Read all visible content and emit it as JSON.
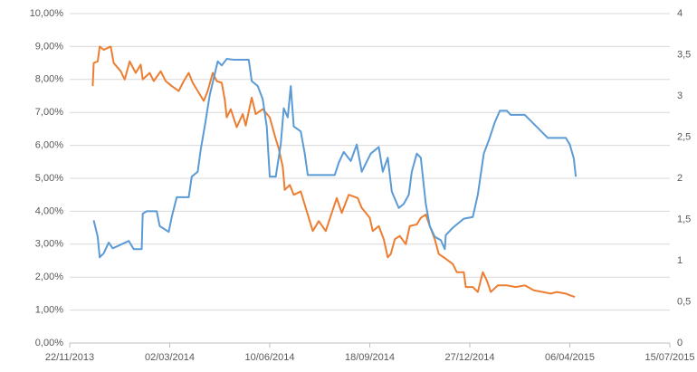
{
  "chart_data": {
    "type": "line",
    "xlim": [
      "2013-11-22",
      "2015-07-15"
    ],
    "xticks": [
      {
        "value": "2013-11-22",
        "label": "22/11/2013"
      },
      {
        "value": "2014-03-02",
        "label": "02/03/2014"
      },
      {
        "value": "2014-06-10",
        "label": "10/06/2014"
      },
      {
        "value": "2014-09-18",
        "label": "18/09/2014"
      },
      {
        "value": "2014-12-27",
        "label": "27/12/2014"
      },
      {
        "value": "2015-04-06",
        "label": "06/04/2015"
      },
      {
        "value": "2015-07-15",
        "label": "15/07/2015"
      }
    ],
    "ylim": [
      0,
      10
    ],
    "yticks": [
      {
        "value": 0,
        "label": "0,00%"
      },
      {
        "value": 1,
        "label": "1,00%"
      },
      {
        "value": 2,
        "label": "2,00%"
      },
      {
        "value": 3,
        "label": "3,00%"
      },
      {
        "value": 4,
        "label": "4,00%"
      },
      {
        "value": 5,
        "label": "5,00%"
      },
      {
        "value": 6,
        "label": "6,00%"
      },
      {
        "value": 7,
        "label": "7,00%"
      },
      {
        "value": 8,
        "label": "8,00%"
      },
      {
        "value": 9,
        "label": "9,00%"
      },
      {
        "value": 10,
        "label": "10,00%"
      }
    ],
    "y2lim": [
      0,
      4
    ],
    "y2ticks": [
      0,
      {
        "value": 0.5,
        "label": "0,5"
      },
      1,
      {
        "value": 1.5,
        "label": "1,5"
      },
      2,
      {
        "value": 2.5,
        "label": "2,5"
      },
      3,
      {
        "value": 3.5,
        "label": "3,5"
      },
      4
    ],
    "grid": true,
    "series": [
      {
        "color": "#ed7d31",
        "x": [
          "2013-12-15",
          "2013-12-16",
          "2013-12-20",
          "2013-12-22",
          "2013-12-26",
          "2014-01-02",
          "2014-01-05",
          "2014-01-12",
          "2014-01-16",
          "2014-01-21",
          "2014-01-27",
          "2014-02-01",
          "2014-02-03",
          "2014-02-10",
          "2014-02-14",
          "2014-02-21",
          "2014-02-26",
          "2014-03-04",
          "2014-03-11",
          "2014-03-16",
          "2014-03-21",
          "2014-03-25",
          "2014-03-30",
          "2014-04-05",
          "2014-04-09",
          "2014-04-14",
          "2014-04-18",
          "2014-04-23",
          "2014-04-26",
          "2014-04-28",
          "2014-05-02",
          "2014-05-08",
          "2014-05-14",
          "2014-05-17",
          "2014-05-23",
          "2014-05-27",
          "2014-06-03",
          "2014-06-10",
          "2014-06-15",
          "2014-06-19",
          "2014-06-23",
          "2014-06-25",
          "2014-06-30",
          "2014-07-04",
          "2014-07-11",
          "2014-07-16",
          "2014-07-20",
          "2014-07-23",
          "2014-07-29",
          "2014-08-05",
          "2014-08-11",
          "2014-08-16",
          "2014-08-21",
          "2014-08-28",
          "2014-09-06",
          "2014-09-10",
          "2014-09-18",
          "2014-09-21",
          "2014-09-27",
          "2014-10-02",
          "2014-10-06",
          "2014-10-09",
          "2014-10-13",
          "2014-10-18",
          "2014-10-24",
          "2014-10-28",
          "2014-11-04",
          "2014-11-08",
          "2014-11-13",
          "2014-11-17",
          "2014-11-22",
          "2014-11-26",
          "2014-12-01",
          "2014-12-10",
          "2014-12-14",
          "2014-12-21",
          "2014-12-23",
          "2014-12-30",
          "2015-01-04",
          "2015-01-09",
          "2015-01-13",
          "2015-01-17",
          "2015-01-24",
          "2015-02-02",
          "2015-02-11",
          "2015-02-20",
          "2015-03-01",
          "2015-03-10",
          "2015-03-18",
          "2015-03-24",
          "2015-04-02",
          "2015-04-06",
          "2015-04-11"
        ],
        "values": [
          7.8,
          8.5,
          8.55,
          9.0,
          8.9,
          9.0,
          8.5,
          8.25,
          8.0,
          8.55,
          8.2,
          8.45,
          8.0,
          8.2,
          7.95,
          8.25,
          7.95,
          7.8,
          7.65,
          7.95,
          8.2,
          7.9,
          7.65,
          7.35,
          7.65,
          8.2,
          7.95,
          7.9,
          7.4,
          6.85,
          7.1,
          6.55,
          6.95,
          6.6,
          7.45,
          6.95,
          7.1,
          6.85,
          6.3,
          5.9,
          5.35,
          4.65,
          4.8,
          4.5,
          4.6,
          4.1,
          3.7,
          3.4,
          3.7,
          3.4,
          3.95,
          4.4,
          3.95,
          4.5,
          4.4,
          4.1,
          3.8,
          3.4,
          3.55,
          3.15,
          2.6,
          2.7,
          3.15,
          3.25,
          3.0,
          3.55,
          3.6,
          3.8,
          3.9,
          3.55,
          3.15,
          2.7,
          2.6,
          2.4,
          2.15,
          2.15,
          1.7,
          1.7,
          1.55,
          2.15,
          1.9,
          1.55,
          1.75,
          1.75,
          1.7,
          1.75,
          1.6,
          1.55,
          1.5,
          1.55,
          1.5,
          1.45,
          1.4
        ]
      },
      {
        "color": "#5b9bd5",
        "axis": "y2",
        "x": [
          "2013-12-16",
          "2013-12-20",
          "2013-12-22",
          "2013-12-26",
          "2013-12-31",
          "2014-01-04",
          "2014-01-13",
          "2014-01-20",
          "2014-01-25",
          "2014-02-02",
          "2014-02-03",
          "2014-02-07",
          "2014-02-17",
          "2014-02-20",
          "2014-03-01",
          "2014-03-04",
          "2014-03-09",
          "2014-03-21",
          "2014-03-24",
          "2014-03-30",
          "2014-04-02",
          "2014-04-06",
          "2014-04-11",
          "2014-04-19",
          "2014-04-23",
          "2014-04-28",
          "2014-05-05",
          "2014-05-20",
          "2014-05-23",
          "2014-05-29",
          "2014-06-03",
          "2014-06-07",
          "2014-06-10",
          "2014-06-16",
          "2014-06-21",
          "2014-06-24",
          "2014-06-28",
          "2014-07-01",
          "2014-07-04",
          "2014-07-11",
          "2014-07-15",
          "2014-07-18",
          "2014-07-27",
          "2014-08-14",
          "2014-08-18",
          "2014-08-23",
          "2014-08-30",
          "2014-09-05",
          "2014-09-10",
          "2014-09-19",
          "2014-09-27",
          "2014-10-01",
          "2014-10-06",
          "2014-10-10",
          "2014-10-17",
          "2014-10-22",
          "2014-10-27",
          "2014-10-30",
          "2014-11-04",
          "2014-11-08",
          "2014-11-13",
          "2014-11-17",
          "2014-11-22",
          "2014-11-28",
          "2014-12-02",
          "2014-12-03",
          "2014-12-10",
          "2014-12-21",
          "2014-12-30",
          "2015-01-04",
          "2015-01-10",
          "2015-01-15",
          "2015-01-21",
          "2015-01-26",
          "2015-02-02",
          "2015-02-06",
          "2015-02-20",
          "2015-03-06",
          "2015-03-15",
          "2015-04-02",
          "2015-04-06",
          "2015-04-10",
          "2015-04-12"
        ],
        "values": [
          1.49,
          1.29,
          1.04,
          1.09,
          1.22,
          1.15,
          1.2,
          1.24,
          1.14,
          1.14,
          1.57,
          1.6,
          1.6,
          1.42,
          1.35,
          1.53,
          1.77,
          1.77,
          2.02,
          2.08,
          2.35,
          2.63,
          3.01,
          3.42,
          3.37,
          3.45,
          3.44,
          3.44,
          3.18,
          3.12,
          2.96,
          2.63,
          2.02,
          2.02,
          2.41,
          2.85,
          2.74,
          3.12,
          2.63,
          2.57,
          2.3,
          2.04,
          2.04,
          2.04,
          2.19,
          2.32,
          2.21,
          2.41,
          2.08,
          2.3,
          2.38,
          2.08,
          2.25,
          1.84,
          1.64,
          1.69,
          1.8,
          2.08,
          2.3,
          2.25,
          1.69,
          1.42,
          1.29,
          1.25,
          1.14,
          1.31,
          1.4,
          1.51,
          1.53,
          1.8,
          2.3,
          2.46,
          2.68,
          2.82,
          2.82,
          2.77,
          2.77,
          2.6,
          2.49,
          2.49,
          2.41,
          2.24,
          2.02
        ]
      }
    ]
  }
}
